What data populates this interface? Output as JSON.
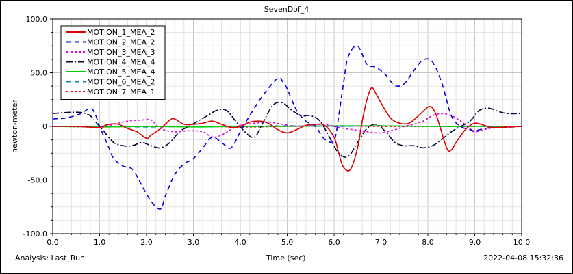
{
  "chart_data": {
    "type": "line",
    "title": "SevenDof_4",
    "xlabel": "Time (sec)",
    "ylabel": "newton-meter",
    "xlim": [
      0.0,
      10.0
    ],
    "ylim": [
      -100.0,
      100.0
    ],
    "xticks": [
      "0.0",
      "1.0",
      "2.0",
      "3.0",
      "4.0",
      "5.0",
      "6.0",
      "7.0",
      "8.0",
      "9.0",
      "10.0"
    ],
    "yticks": [
      "-100.0",
      "-50.0",
      "0",
      "50.0",
      "100.0"
    ],
    "grid": true,
    "legend_position": "top-left",
    "series": [
      {
        "name": "MOTION_1_MEA_2",
        "color": "#dd0000",
        "dash": "solid",
        "x": [
          0,
          0.5,
          0.9,
          1.0,
          1.2,
          1.4,
          1.6,
          1.8,
          2.0,
          2.1,
          2.3,
          2.5,
          2.6,
          2.8,
          3.0,
          3.2,
          3.4,
          3.6,
          3.8,
          4.0,
          4.2,
          4.4,
          4.6,
          4.8,
          5.0,
          5.2,
          5.4,
          5.6,
          5.8,
          6.0,
          6.1,
          6.2,
          6.35,
          6.5,
          6.6,
          6.7,
          6.8,
          6.9,
          7.0,
          7.2,
          7.4,
          7.6,
          7.8,
          8.0,
          8.1,
          8.2,
          8.4,
          8.5,
          8.6,
          8.8,
          9.0,
          9.2,
          9.4,
          10.0
        ],
        "y": [
          0,
          0,
          -1,
          -1,
          2,
          2,
          -2,
          -5,
          -11,
          -8,
          -2,
          6,
          7,
          2,
          2,
          3,
          5,
          2,
          -1,
          0,
          4,
          5,
          3,
          -3,
          -6,
          -3,
          1,
          2,
          1,
          -10,
          -25,
          -38,
          -40,
          -20,
          5,
          25,
          36,
          30,
          22,
          8,
          3,
          3,
          10,
          18,
          17,
          8,
          -20,
          -22,
          -15,
          -3,
          3,
          1,
          -1,
          0
        ]
      },
      {
        "name": "MOTION_2_MEA_2",
        "color": "#0000dd",
        "dash": "long",
        "x": [
          0,
          0.3,
          0.6,
          0.8,
          0.9,
          1.0,
          1.1,
          1.2,
          1.3,
          1.5,
          1.7,
          1.9,
          2.1,
          2.3,
          2.4,
          2.6,
          2.8,
          3.0,
          3.2,
          3.4,
          3.6,
          3.8,
          4.0,
          4.2,
          4.5,
          4.8,
          4.9,
          5.0,
          5.2,
          5.4,
          5.6,
          5.8,
          6.0,
          6.1,
          6.2,
          6.3,
          6.5,
          6.7,
          6.9,
          7.1,
          7.3,
          7.5,
          7.7,
          7.9,
          8.1,
          8.3,
          8.5,
          8.7,
          8.9,
          9.0,
          9.2,
          9.4,
          9.6,
          10.0
        ],
        "y": [
          7,
          8,
          12,
          17,
          12,
          0,
          -10,
          -20,
          -30,
          -37,
          -40,
          -55,
          -70,
          -77,
          -65,
          -45,
          -35,
          -30,
          -20,
          -10,
          -15,
          -20,
          -5,
          10,
          30,
          45,
          42,
          35,
          15,
          5,
          0,
          -12,
          -13,
          10,
          40,
          65,
          75,
          58,
          55,
          48,
          38,
          40,
          52,
          62,
          60,
          40,
          10,
          0,
          -3,
          -4,
          -2,
          -1,
          -1,
          0
        ]
      },
      {
        "name": "MOTION_3_MEA_3",
        "color": "#dd00dd",
        "dash": "short",
        "x": [
          0,
          0.5,
          1.0,
          1.3,
          1.6,
          1.9,
          2.1,
          2.3,
          2.6,
          2.9,
          3.2,
          3.4,
          3.6,
          3.8,
          4.0,
          4.3,
          4.6,
          4.9,
          5.2,
          5.5,
          5.8,
          6.1,
          6.4,
          6.7,
          7.0,
          7.3,
          7.5,
          7.7,
          7.9,
          8.1,
          8.3,
          8.5,
          8.7,
          8.9,
          9.0,
          9.3,
          9.6,
          10.0
        ],
        "y": [
          0,
          0,
          -1,
          2,
          5,
          6,
          6,
          -2,
          -5,
          -4,
          -5,
          -10,
          -8,
          -3,
          1,
          3,
          4,
          2,
          0,
          1,
          2,
          -1,
          -3,
          -5,
          -6,
          -3,
          0,
          2,
          5,
          10,
          12,
          10,
          5,
          -2,
          -5,
          -2,
          -1,
          0
        ]
      },
      {
        "name": "MOTION_4_MEA_4",
        "color": "#000033",
        "dash": "dashdot",
        "x": [
          0,
          0.3,
          0.6,
          0.8,
          0.9,
          1.0,
          1.1,
          1.3,
          1.5,
          1.7,
          1.9,
          2.1,
          2.3,
          2.5,
          2.7,
          2.9,
          3.1,
          3.3,
          3.5,
          3.7,
          3.9,
          4.1,
          4.3,
          4.5,
          4.7,
          4.9,
          5.1,
          5.3,
          5.5,
          5.7,
          5.9,
          6.1,
          6.3,
          6.5,
          6.7,
          6.9,
          7.1,
          7.3,
          7.5,
          7.7,
          7.9,
          8.1,
          8.3,
          8.5,
          8.7,
          8.9,
          9.1,
          9.3,
          9.5,
          9.7,
          10.0
        ],
        "y": [
          12,
          13,
          13,
          10,
          5,
          0,
          -5,
          -15,
          -18,
          -18,
          -15,
          -18,
          -20,
          -15,
          -5,
          0,
          5,
          10,
          15,
          15,
          5,
          -5,
          -10,
          5,
          20,
          22,
          15,
          10,
          10,
          5,
          -10,
          -25,
          -28,
          -15,
          -2,
          2,
          -5,
          -15,
          -18,
          -18,
          -20,
          -18,
          -12,
          -5,
          0,
          5,
          15,
          17,
          14,
          12,
          12
        ]
      },
      {
        "name": "MOTION_5_MEA_4",
        "color": "#00cc00",
        "dash": "solid",
        "x": [
          0,
          1,
          2,
          3,
          4,
          5,
          6,
          7,
          8,
          9,
          10
        ],
        "y": [
          0,
          -0.5,
          0,
          -0.5,
          0,
          0,
          0.5,
          0.5,
          0,
          0,
          0
        ]
      },
      {
        "name": "MOTION_6_MEA_2",
        "color": "#0088aa",
        "dash": "long",
        "x": [
          0,
          1,
          2,
          3,
          4,
          5,
          6,
          7,
          8,
          9,
          10
        ],
        "y": [
          0,
          0,
          -0.5,
          0,
          0,
          0.5,
          0,
          0.5,
          0,
          0,
          0
        ]
      },
      {
        "name": "MOTION_7_MEA_1",
        "color": "#dd0000",
        "dash": "short",
        "x": [
          0,
          1,
          2,
          3,
          4,
          5,
          6,
          7,
          8,
          9,
          10
        ],
        "y": [
          0,
          -0.5,
          0,
          0,
          -0.5,
          0,
          0.5,
          0,
          0,
          0,
          0
        ]
      }
    ]
  },
  "footer": {
    "analysis": "Analysis:  Last_Run",
    "timestamp": "2022-04-08 15:32:36"
  }
}
